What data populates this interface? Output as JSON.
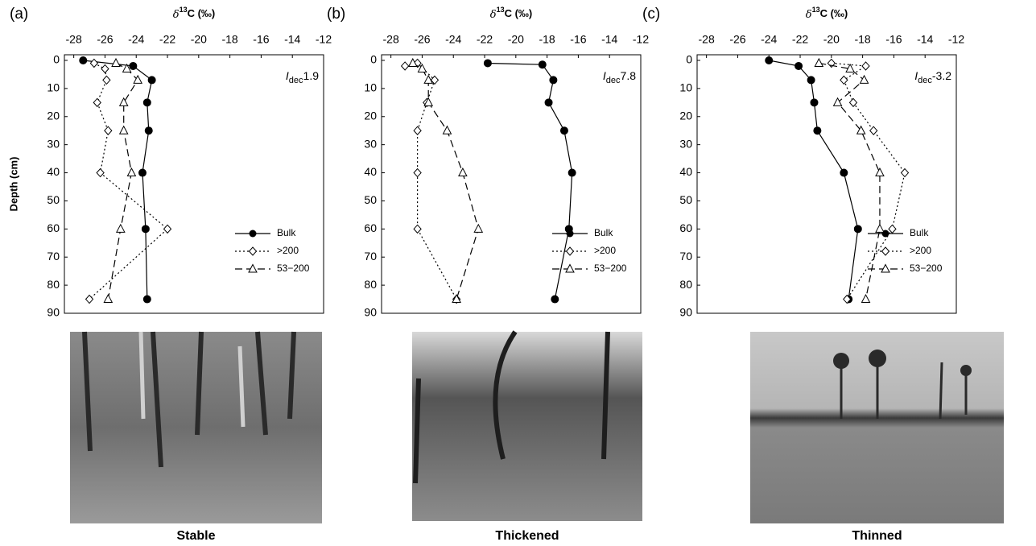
{
  "chart_data": [
    {
      "type": "profile",
      "panel_label": "(a)",
      "x_label": {
        "symbol": "δ",
        "superscript": "13",
        "rest": "C (‰)"
      },
      "y_label": "Depth (cm)",
      "annotation": {
        "symbol": "I",
        "subscript": "dec",
        "value": "1.9"
      },
      "xlim": [
        -28.6,
        -12
      ],
      "xticks": [
        -28,
        -26,
        -24,
        -22,
        -20,
        -18,
        -16,
        -14,
        -12
      ],
      "ylim": [
        -2,
        90
      ],
      "yticks": [
        0,
        10,
        20,
        30,
        40,
        50,
        60,
        70,
        80,
        90
      ],
      "caption": "Stable",
      "series": [
        {
          "name": "Bulk",
          "color": "#000000",
          "marker": "circle",
          "dash": "solid",
          "depth": [
            0,
            2,
            7,
            15,
            25,
            40,
            60,
            85
          ],
          "values": [
            -27.4,
            -24.2,
            -23.0,
            -23.3,
            -23.2,
            -23.6,
            -23.4,
            -23.3
          ]
        },
        {
          "name": ">200",
          "color": "#000000",
          "marker": "diamond",
          "dash": "dotted",
          "depth": [
            1,
            3,
            7,
            15,
            25,
            40,
            60,
            85
          ],
          "values": [
            -26.7,
            -26.0,
            -25.9,
            -26.5,
            -25.8,
            -26.3,
            -22.0,
            -27.0
          ]
        },
        {
          "name": "53−200",
          "color": "#000000",
          "marker": "triangle",
          "dash": "dashed",
          "depth": [
            1,
            3,
            7,
            15,
            25,
            40,
            60,
            85
          ],
          "values": [
            -25.3,
            -24.6,
            -23.9,
            -24.8,
            -24.8,
            -24.3,
            -25.0,
            -25.8
          ]
        }
      ]
    },
    {
      "type": "profile",
      "panel_label": "(b)",
      "x_label": {
        "symbol": "δ",
        "superscript": "13",
        "rest": "C (‰)"
      },
      "annotation": {
        "symbol": "I",
        "subscript": "dec",
        "value": "7.8"
      },
      "xlim": [
        -28.6,
        -12
      ],
      "xticks": [
        -28,
        -26,
        -24,
        -22,
        -20,
        -18,
        -16,
        -14,
        -12
      ],
      "ylim": [
        -2,
        90
      ],
      "yticks": [
        0,
        10,
        20,
        30,
        40,
        50,
        60,
        70,
        80,
        90
      ],
      "caption": "Thickened",
      "series": [
        {
          "name": "Bulk",
          "color": "#000000",
          "marker": "circle",
          "dash": "solid",
          "depth": [
            1,
            1.5,
            7,
            15,
            25,
            40,
            60,
            85
          ],
          "values": [
            -21.8,
            -18.3,
            -17.6,
            -17.9,
            -16.9,
            -16.4,
            -16.6,
            -17.5
          ]
        },
        {
          "name": ">200",
          "color": "#000000",
          "marker": "diamond",
          "dash": "dotted",
          "depth": [
            2,
            1,
            7,
            15,
            25,
            40,
            60,
            85
          ],
          "values": [
            -27.1,
            -26.3,
            -25.2,
            -25.7,
            -26.3,
            -26.3,
            -26.3,
            -23.8
          ]
        },
        {
          "name": "53−200",
          "color": "#000000",
          "marker": "triangle",
          "dash": "dashed",
          "depth": [
            1,
            3,
            7,
            15,
            25,
            40,
            60,
            85
          ],
          "values": [
            -26.6,
            -26.0,
            -25.6,
            -25.6,
            -24.4,
            -23.4,
            -22.4,
            -23.8
          ]
        }
      ]
    },
    {
      "type": "profile",
      "panel_label": "(c)",
      "x_label": {
        "symbol": "δ",
        "superscript": "13",
        "rest": "C (‰)"
      },
      "annotation": {
        "symbol": "I",
        "subscript": "dec",
        "value": "-3.2"
      },
      "xlim": [
        -28.6,
        -12
      ],
      "xticks": [
        -28,
        -26,
        -24,
        -22,
        -20,
        -18,
        -16,
        -14,
        -12
      ],
      "ylim": [
        -2,
        90
      ],
      "yticks": [
        0,
        10,
        20,
        30,
        40,
        50,
        60,
        70,
        80,
        90
      ],
      "caption": "Thinned",
      "series": [
        {
          "name": "Bulk",
          "color": "#000000",
          "marker": "circle",
          "dash": "solid",
          "depth": [
            0,
            2,
            7,
            15,
            25,
            40,
            60,
            85
          ],
          "values": [
            -24.0,
            -22.1,
            -21.3,
            -21.1,
            -20.9,
            -19.2,
            -18.3,
            -18.9
          ]
        },
        {
          "name": ">200",
          "color": "#000000",
          "marker": "diamond",
          "dash": "dotted",
          "depth": [
            1,
            2,
            7,
            15,
            25,
            40,
            60,
            85
          ],
          "values": [
            -20.0,
            -17.8,
            -19.2,
            -18.6,
            -17.3,
            -15.3,
            -16.1,
            -19.0
          ]
        },
        {
          "name": "53−200",
          "color": "#000000",
          "marker": "triangle",
          "dash": "dashed",
          "depth": [
            1,
            3,
            7,
            15,
            25,
            40,
            60,
            85
          ],
          "values": [
            -20.8,
            -18.8,
            -17.9,
            -19.6,
            -18.1,
            -16.9,
            -16.9,
            -17.8
          ]
        }
      ]
    }
  ]
}
